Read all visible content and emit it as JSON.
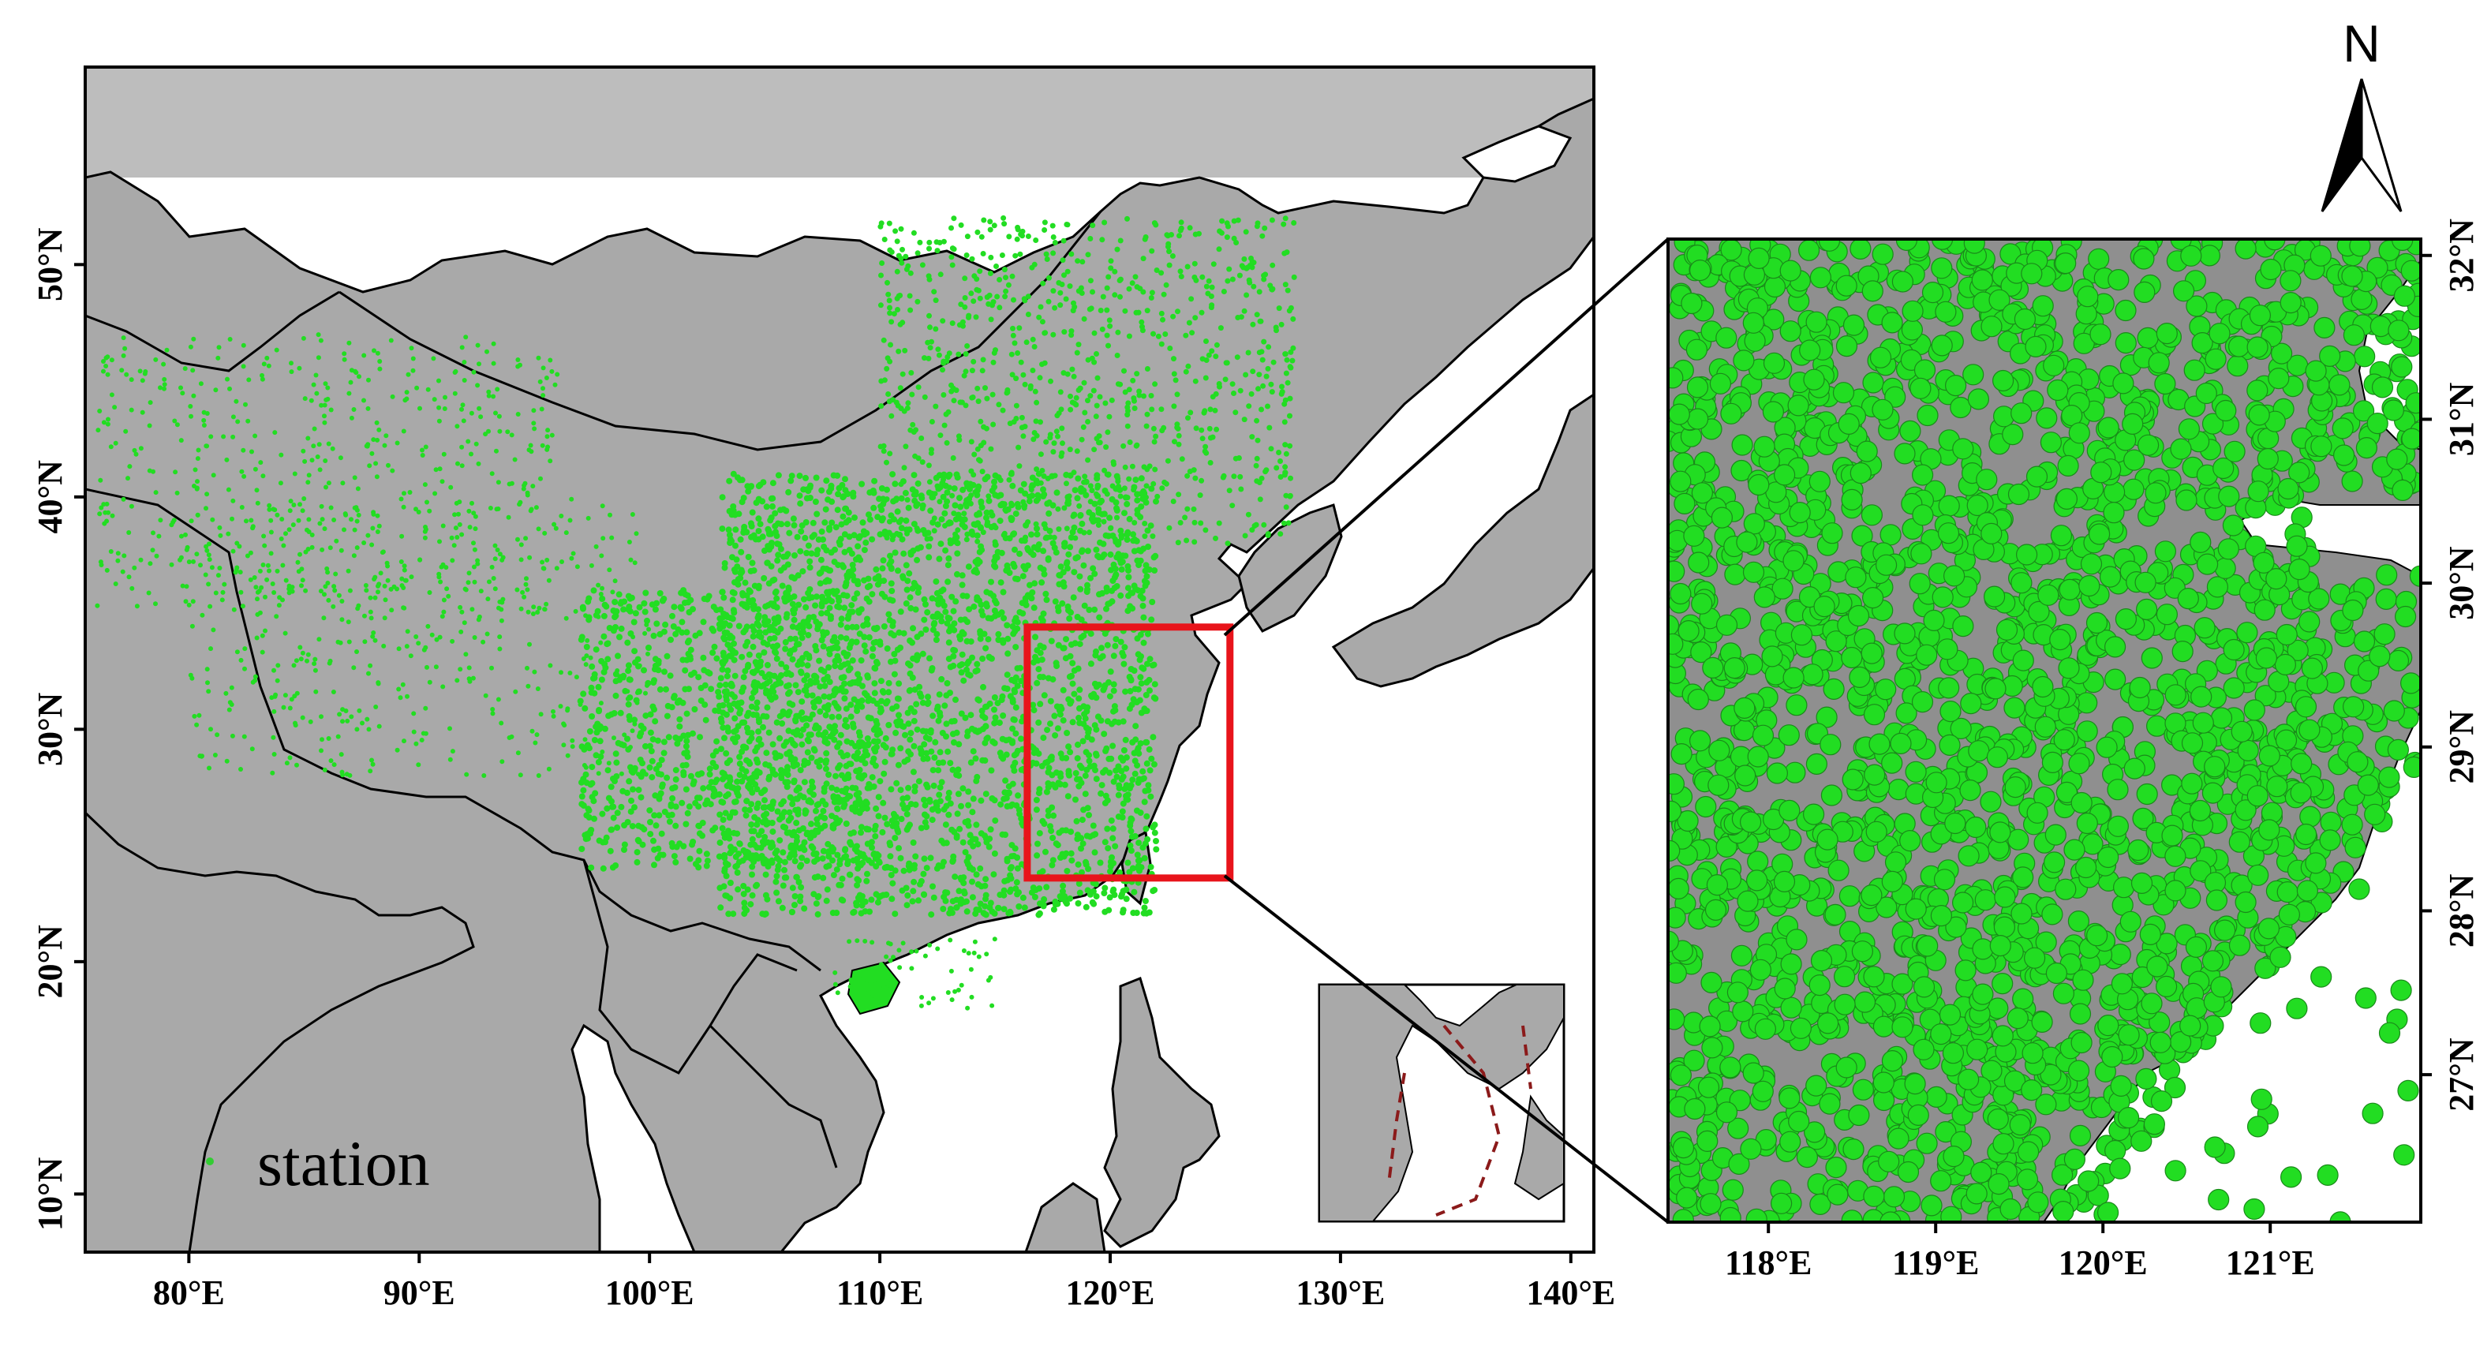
{
  "main_map": {
    "lon_labels": [
      "80°E",
      "90°E",
      "100°E",
      "110°E",
      "120°E",
      "130°E",
      "140°E"
    ],
    "lat_labels": [
      "10°N",
      "20°N",
      "30°N",
      "40°N",
      "50°N"
    ],
    "lon_range": [
      75.5,
      141
    ],
    "lat_range": [
      7.5,
      58.5
    ]
  },
  "zoom_map": {
    "lon_labels": [
      "118°E",
      "119°E",
      "120°E",
      "121°E"
    ],
    "lat_labels": [
      "27°N",
      "28°N",
      "29°N",
      "30°N",
      "31°N",
      "32°N"
    ],
    "lon_range": [
      117.4,
      121.9
    ],
    "lat_range": [
      26.1,
      32.1
    ]
  },
  "study_area_box": {
    "lon": [
      116.4,
      125.2
    ],
    "lat": [
      23.6,
      34.4
    ],
    "color": "#e8141b"
  },
  "legend": {
    "label": "station",
    "symbol_color": "#33cc33"
  },
  "north_arrow": {
    "label": "N"
  },
  "colors": {
    "land": "#a9a9a9",
    "sea_top": "#bdbdbd",
    "sea": "#ffffff",
    "station": "#22dd22",
    "border": "#000000"
  }
}
